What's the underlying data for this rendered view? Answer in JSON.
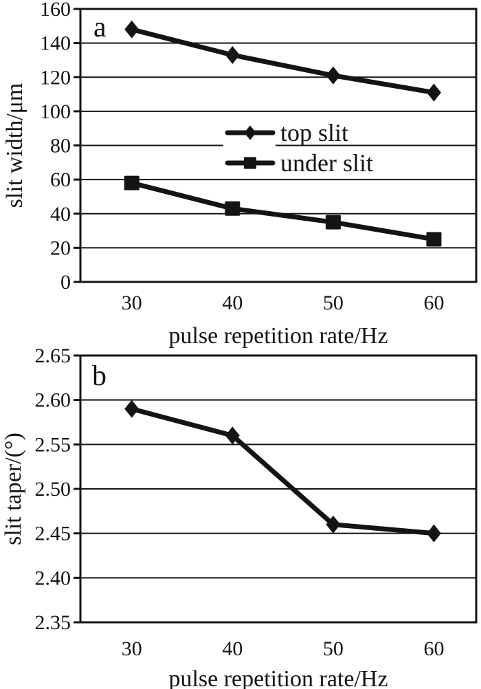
{
  "figure": {
    "description": "Two stacked line charts of laser-machined slit geometry versus pulse repetition rate",
    "background": "#ffffff"
  },
  "colors": {
    "ink": "#141414",
    "grid": "#1a1a1a",
    "background": "#ffffff"
  },
  "chart_data": [
    {
      "type": "line",
      "panel_label": "a",
      "title": "",
      "xlabel": "pulse repetition rate/Hz",
      "ylabel": "slit width/μm",
      "x": [
        30,
        40,
        50,
        60
      ],
      "xticks": [
        30,
        40,
        50,
        60
      ],
      "xlim": [
        24.9,
        64.2
      ],
      "ylim": [
        0,
        160
      ],
      "ytick_step": 20,
      "y_decimals": 0,
      "grid": "horizontal",
      "legend": {
        "position": "inside-center",
        "entries": [
          "top slit",
          "under slit"
        ]
      },
      "series": [
        {
          "name": "top slit",
          "marker": "diamond",
          "values": [
            148,
            133,
            121,
            111
          ]
        },
        {
          "name": "under slit",
          "marker": "square",
          "values": [
            58,
            43,
            35,
            25
          ]
        }
      ]
    },
    {
      "type": "line",
      "panel_label": "b",
      "title": "",
      "xlabel": "pulse repetition rate/Hz",
      "ylabel": "slit taper/(°)",
      "x": [
        30,
        40,
        50,
        60
      ],
      "xticks": [
        30,
        40,
        50,
        60
      ],
      "xlim": [
        24.9,
        64.2
      ],
      "ylim": [
        2.35,
        2.65
      ],
      "ytick_step": 0.05,
      "y_decimals": 2,
      "grid": "horizontal",
      "legend": null,
      "series": [
        {
          "name": "slit taper",
          "marker": "diamond",
          "values": [
            2.59,
            2.56,
            2.46,
            2.45
          ]
        }
      ]
    }
  ]
}
